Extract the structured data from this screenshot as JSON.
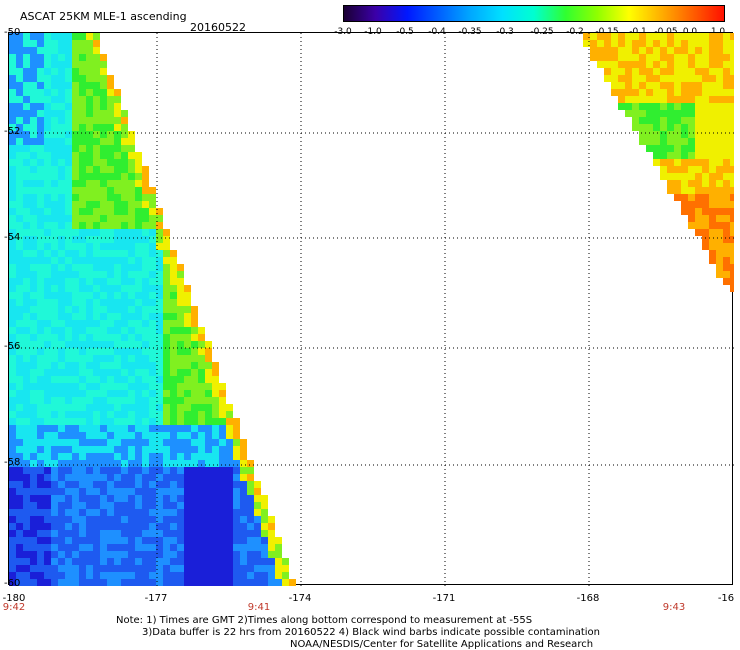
{
  "header": {
    "title": "ASCAT 25KM MLE-1 ascending",
    "date": "20160522"
  },
  "colorbar": {
    "labels": [
      "-3.0",
      "-1.0",
      "-0.5",
      "-0.4",
      "-0.35",
      "-0.3",
      "-0.25",
      "-0.2",
      "-0.15",
      "-0.1",
      "-0.05",
      "0.0",
      "1.0"
    ],
    "colors": [
      "#1a0033",
      "#3b00a8",
      "#0018ff",
      "#0060ff",
      "#00a8ff",
      "#00e0ff",
      "#00ffd0",
      "#30ff30",
      "#90ff00",
      "#ffff00",
      "#ffb000",
      "#ff6000",
      "#ff1000"
    ]
  },
  "axes": {
    "lat_labels": [
      "-50",
      "-52",
      "-54",
      "-56",
      "-58",
      "-60"
    ],
    "lon_labels": [
      "-180",
      "-177",
      "-174",
      "-171",
      "-168",
      "-16"
    ],
    "time_labels": [
      "9:42",
      "9:41",
      "9:43"
    ]
  },
  "notes": {
    "line1": "Note: 1) Times are GMT 2)Times along bottom correspond to measurement at -55S",
    "line2": "3)Data buffer is 22 hrs from 20160522 4) Black wind barbs indicate possible contamination",
    "line3": "NOAA/NESDIS/Center for Satellite Applications and Research"
  }
}
